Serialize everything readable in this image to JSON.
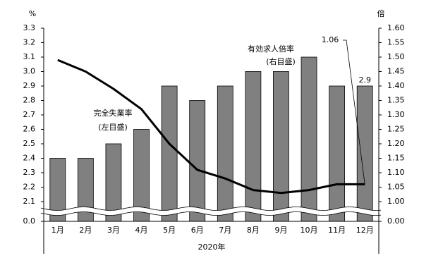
{
  "chart_data": {
    "type": "bar_line",
    "categories": [
      "1月",
      "2月",
      "3月",
      "4月",
      "5月",
      "6月",
      "7月",
      "8月",
      "9月",
      "10月",
      "11月",
      "12月"
    ],
    "x_label": "2020年",
    "y_label": "%",
    "y2_label": "倍",
    "axis_break": true,
    "series": [
      {
        "name": "完全失業率",
        "type": "bar",
        "color": "#808080",
        "values": [
          2.4,
          2.4,
          2.5,
          2.6,
          2.9,
          2.8,
          2.9,
          3.0,
          3.0,
          3.1,
          2.9,
          2.9
        ]
      },
      {
        "name": "有効求人倍率",
        "type": "line",
        "axis": "y2",
        "color": "#000000",
        "values": [
          1.49,
          1.45,
          1.39,
          1.32,
          1.2,
          1.11,
          1.08,
          1.04,
          1.03,
          1.04,
          1.06,
          1.06
        ]
      }
    ],
    "annotations": [
      "(左目盛)",
      "(右目盛)"
    ],
    "ylim": [
      0,
      3.3
    ],
    "yticks": [
      {
        "value": 0,
        "label": "0.0"
      },
      {
        "value": 2.1,
        "label": "2.1"
      },
      {
        "value": 2.2,
        "label": "2.2"
      },
      {
        "value": 2.3,
        "label": "2.3"
      },
      {
        "value": 2.4,
        "label": "2.4"
      },
      {
        "value": 2.5,
        "label": "2.5"
      },
      {
        "value": 2.6,
        "label": "2.6"
      },
      {
        "value": 2.7,
        "label": "2.7"
      },
      {
        "value": 2.8,
        "label": "2.8"
      },
      {
        "value": 2.9,
        "label": "2.9"
      },
      {
        "value": 3,
        "label": "3.0"
      },
      {
        "value": 3.1,
        "label": "3.1"
      },
      {
        "value": 3.2,
        "label": "3.2"
      },
      {
        "value": 3.3,
        "label": "3.3"
      }
    ],
    "y2lim": [
      0,
      1.6
    ],
    "y2ticks": [
      {
        "value": 0,
        "label": "0.00"
      },
      {
        "value": 1,
        "label": "1.00"
      },
      {
        "value": 1.05,
        "label": "1.05"
      },
      {
        "value": 1.1,
        "label": "1.10"
      },
      {
        "value": 1.15,
        "label": "1.15"
      },
      {
        "value": 1.2,
        "label": "1.20"
      },
      {
        "value": 1.25,
        "label": "1.25"
      },
      {
        "value": 1.3,
        "label": "1.30"
      },
      {
        "value": 1.35,
        "label": "1.35"
      },
      {
        "value": 1.4,
        "label": "1.40"
      },
      {
        "value": 1.45,
        "label": "1.45"
      },
      {
        "value": 1.5,
        "label": "1.50"
      },
      {
        "value": 1.55,
        "label": "1.55"
      },
      {
        "value": 1.6,
        "label": "1.60"
      }
    ]
  }
}
